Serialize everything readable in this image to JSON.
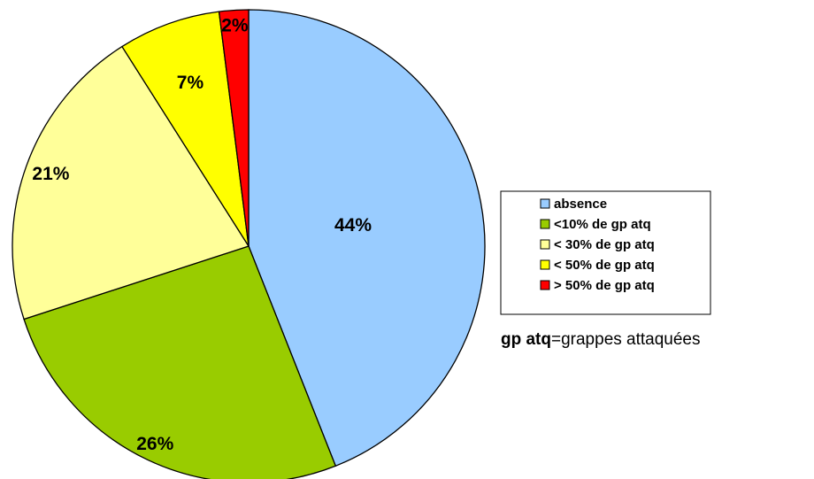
{
  "chart_data": {
    "type": "pie",
    "categories": [
      "absence",
      "<10% de gp atq",
      "< 30% de gp atq",
      "< 50% de gp atq",
      "> 50% de gp atq"
    ],
    "values": [
      44,
      26,
      21,
      7,
      2
    ],
    "value_labels": [
      "44%",
      "26%",
      "21%",
      "7%",
      "2%"
    ],
    "colors": [
      "#99ccff",
      "#99cc00",
      "#ffff99",
      "#ffff00",
      "#ff0000"
    ],
    "legend": "right",
    "annotation": [
      "gp atq",
      "=grappes attaquées"
    ]
  }
}
